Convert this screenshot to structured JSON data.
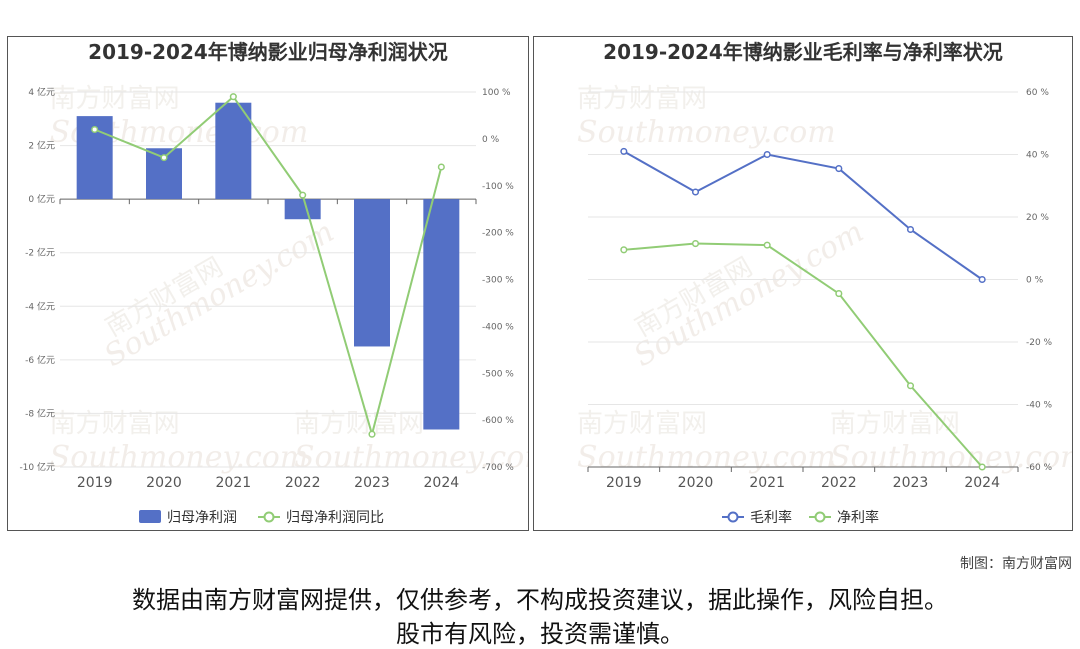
{
  "chart_data": [
    {
      "type": "bar",
      "title": "2019-2024年博纳影业归母净利润状况",
      "categories": [
        "2019",
        "2020",
        "2021",
        "2022",
        "2023",
        "2024"
      ],
      "series": [
        {
          "name": "归母净利润",
          "type": "bar",
          "axis": "left",
          "color": "#5470c6",
          "values": [
            3.1,
            1.9,
            3.6,
            -0.75,
            -5.5,
            -8.6
          ]
        },
        {
          "name": "归母净利润同比",
          "type": "line",
          "axis": "right",
          "color": "#91cc75",
          "values": [
            20,
            -40,
            90,
            -120,
            -630,
            -60
          ]
        }
      ],
      "y_left": {
        "ylim": [
          -10,
          4
        ],
        "ticks": [
          "4 亿元",
          "2 亿元",
          "0 亿元",
          "-2 亿元",
          "-4 亿元",
          "-6 亿元",
          "-8 亿元",
          "-10 亿元"
        ]
      },
      "y_right": {
        "ylim": [
          -700,
          100
        ],
        "ticks": [
          "100 %",
          "0 %",
          "-100 %",
          "-200 %",
          "-300 %",
          "-400 %",
          "-500 %",
          "-600 %",
          "-700 %"
        ]
      },
      "legend": "bottom",
      "grid": true
    },
    {
      "type": "line",
      "title": "2019-2024年博纳影业毛利率与净利率状况",
      "categories": [
        "2019",
        "2020",
        "2021",
        "2022",
        "2023",
        "2024"
      ],
      "series": [
        {
          "name": "毛利率",
          "color": "#5470c6",
          "values": [
            41,
            28,
            40,
            35.5,
            16,
            0
          ]
        },
        {
          "name": "净利率",
          "color": "#91cc75",
          "values": [
            9.5,
            11.5,
            11,
            -4.5,
            -34,
            -60
          ]
        }
      ],
      "y_right": {
        "ylim": [
          -60,
          60
        ],
        "ticks": [
          "60 %",
          "40 %",
          "20 %",
          "0 %",
          "-20 %",
          "-40 %",
          "-60 %"
        ]
      },
      "legend": "bottom",
      "grid": true
    }
  ],
  "watermark": {
    "cn": "南方财富网",
    "en": "Southmoney.com"
  },
  "footer": {
    "credit": "制图：南方财富网",
    "disclaimer1": "数据由南方财富网提供，仅供参考，不构成投资建议，据此操作，风险自担。",
    "disclaimer2": "股市有风险，投资需谨慎。"
  }
}
